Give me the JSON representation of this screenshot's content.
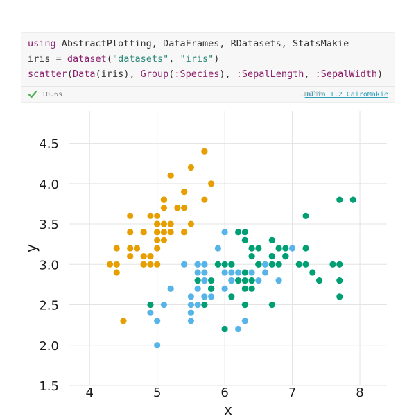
{
  "cell": {
    "code_lines": [
      [
        {
          "t": "using",
          "c": "kw"
        },
        {
          "t": " AbstractPlotting, DataFrames, RDatasets, StatsMakie",
          "c": ""
        }
      ],
      [
        {
          "t": "iris = ",
          "c": ""
        },
        {
          "t": "dataset",
          "c": "fn"
        },
        {
          "t": "(",
          "c": ""
        },
        {
          "t": "\"datasets\"",
          "c": "str"
        },
        {
          "t": ", ",
          "c": ""
        },
        {
          "t": "\"iris\"",
          "c": "str"
        },
        {
          "t": ")",
          "c": ""
        }
      ],
      [
        {
          "t": "scatter",
          "c": "fn"
        },
        {
          "t": "(",
          "c": ""
        },
        {
          "t": "Data",
          "c": "fn"
        },
        {
          "t": "(iris), ",
          "c": ""
        },
        {
          "t": "Group",
          "c": "fn"
        },
        {
          "t": "(",
          "c": ""
        },
        {
          "t": ":Species",
          "c": "sym"
        },
        {
          "t": "), ",
          "c": ""
        },
        {
          "t": ":SepalLength",
          "c": "sym"
        },
        {
          "t": ", ",
          "c": ""
        },
        {
          "t": ":SepalWidth",
          "c": "sym"
        },
        {
          "t": ")",
          "c": ""
        }
      ]
    ],
    "runtime": "10.6s",
    "language": "Julia",
    "environment": "Julia 1.2 CairoMakie"
  },
  "colors": {
    "setosa": "#e69f00",
    "versicolor": "#56b4e9",
    "virginica": "#009e73",
    "check": "#4caf50"
  },
  "chart_data": {
    "type": "scatter",
    "title": "",
    "xlabel": "x",
    "ylabel": "y",
    "xlim": [
      3.7,
      8.4
    ],
    "ylim": [
      1.5,
      4.9
    ],
    "xticks": [
      4,
      5,
      6,
      7,
      8
    ],
    "yticks": [
      1.5,
      2.0,
      2.5,
      3.0,
      3.5,
      4.0,
      4.5
    ],
    "ytick_labels": [
      "1.5",
      "2.0",
      "2.5",
      "3.0",
      "3.5",
      "4.0",
      "4.5"
    ],
    "grid": true,
    "legend": "none",
    "series": [
      {
        "color": "#e69f00",
        "x": [
          5.1,
          4.9,
          4.7,
          4.6,
          5.0,
          5.4,
          4.6,
          5.0,
          4.4,
          4.9,
          5.4,
          4.8,
          4.8,
          4.3,
          5.8,
          5.7,
          5.4,
          5.1,
          5.7,
          5.1,
          5.4,
          5.1,
          4.6,
          5.1,
          4.8,
          5.0,
          5.0,
          5.2,
          5.2,
          4.7,
          4.8,
          5.4,
          5.2,
          5.5,
          4.9,
          5.0,
          5.5,
          4.9,
          4.4,
          5.1,
          5.0,
          4.5,
          4.4,
          5.0,
          5.1,
          4.8,
          5.1,
          4.6,
          5.3,
          5.0
        ],
        "y": [
          3.5,
          3.0,
          3.2,
          3.1,
          3.6,
          3.9,
          3.4,
          3.4,
          2.9,
          3.1,
          3.7,
          3.4,
          3.0,
          3.0,
          4.0,
          4.4,
          3.9,
          3.5,
          3.8,
          3.8,
          3.4,
          3.7,
          3.6,
          3.3,
          3.4,
          3.0,
          3.4,
          3.5,
          3.4,
          3.2,
          3.1,
          3.4,
          4.1,
          4.2,
          3.1,
          3.2,
          3.5,
          3.6,
          3.0,
          3.4,
          3.5,
          2.3,
          3.2,
          3.5,
          3.8,
          3.0,
          3.8,
          3.2,
          3.7,
          3.3
        ]
      },
      {
        "color": "#56b4e9",
        "x": [
          7.0,
          6.4,
          6.9,
          5.5,
          6.5,
          5.7,
          6.3,
          4.9,
          6.6,
          5.2,
          5.0,
          5.9,
          6.0,
          6.1,
          5.6,
          6.7,
          5.6,
          5.8,
          6.2,
          5.6,
          5.9,
          6.1,
          6.3,
          6.1,
          6.4,
          6.6,
          6.8,
          6.7,
          6.0,
          5.7,
          5.5,
          5.5,
          5.8,
          6.0,
          5.4,
          6.0,
          6.7,
          6.3,
          5.6,
          5.5,
          5.5,
          6.1,
          5.8,
          5.0,
          5.6,
          5.7,
          5.7,
          6.2,
          5.1,
          5.7
        ],
        "y": [
          3.2,
          3.2,
          3.1,
          2.3,
          2.8,
          2.8,
          3.3,
          2.4,
          2.9,
          2.7,
          2.0,
          3.0,
          2.2,
          2.9,
          2.9,
          3.1,
          3.0,
          2.7,
          2.2,
          2.5,
          3.2,
          2.8,
          2.5,
          2.8,
          2.9,
          3.0,
          2.8,
          3.0,
          2.9,
          2.6,
          2.4,
          2.4,
          2.7,
          2.7,
          3.0,
          3.4,
          3.1,
          2.3,
          3.0,
          2.5,
          2.6,
          3.0,
          2.6,
          2.3,
          2.7,
          3.0,
          2.9,
          2.9,
          2.5,
          2.8
        ]
      },
      {
        "color": "#009e73",
        "x": [
          6.3,
          5.8,
          7.1,
          6.3,
          6.5,
          7.6,
          4.9,
          7.3,
          6.7,
          7.2,
          6.5,
          6.4,
          6.8,
          5.7,
          5.8,
          6.4,
          6.5,
          7.7,
          7.7,
          6.0,
          6.9,
          5.6,
          7.7,
          6.3,
          6.7,
          7.2,
          6.2,
          6.1,
          6.4,
          7.2,
          7.4,
          7.9,
          6.4,
          6.3,
          6.1,
          7.7,
          6.3,
          6.4,
          6.0,
          6.9,
          6.7,
          6.9,
          5.8,
          6.8,
          6.7,
          6.7,
          6.3,
          6.5,
          6.2,
          5.9
        ],
        "y": [
          3.3,
          2.7,
          3.0,
          2.9,
          3.0,
          3.0,
          2.5,
          2.9,
          2.5,
          3.6,
          3.2,
          2.7,
          3.0,
          2.5,
          2.8,
          3.2,
          3.0,
          3.8,
          2.6,
          2.2,
          3.2,
          2.8,
          2.8,
          2.7,
          3.3,
          3.2,
          2.8,
          3.0,
          2.8,
          3.0,
          2.8,
          3.8,
          2.8,
          2.8,
          2.6,
          3.0,
          3.4,
          3.1,
          3.0,
          3.1,
          3.1,
          3.1,
          2.7,
          3.2,
          3.3,
          3.0,
          2.5,
          3.0,
          3.4,
          3.0
        ]
      }
    ]
  }
}
